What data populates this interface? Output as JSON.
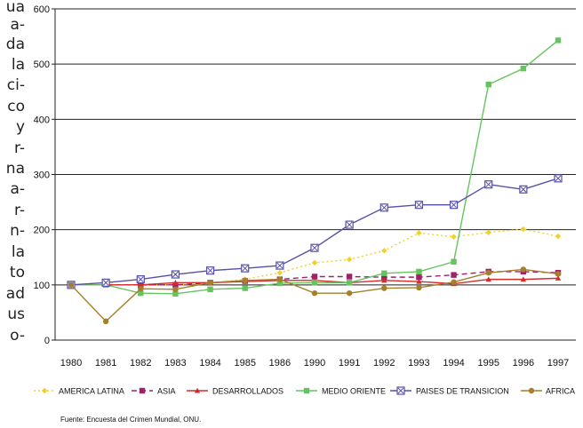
{
  "side_text": [
    "ua",
    "a-",
    "da",
    "la",
    "ci-",
    "co",
    "y",
    "r-",
    "na",
    "a-",
    "r-",
    "n-",
    "la",
    "to",
    "ad",
    "us",
    "o-"
  ],
  "chart_data": {
    "type": "line",
    "title": "",
    "xlabel": "",
    "ylabel": "",
    "categories": [
      "1980",
      "1981",
      "1982",
      "1983",
      "1984",
      "1985",
      "1986",
      "1990",
      "1991",
      "1992",
      "1993",
      "1994",
      "1995",
      "1996",
      "1997"
    ],
    "ylim": [
      0,
      600
    ],
    "yticks": [
      0,
      100,
      200,
      300,
      400,
      500,
      600
    ],
    "grid": "horizontal",
    "legend_position": "bottom",
    "series": [
      {
        "name": "AMERICA LATINA",
        "color": "#f2d02a",
        "dash": "2,3",
        "marker": "diamond",
        "values": [
          100,
          100,
          100,
          100,
          103,
          110,
          122,
          140,
          146,
          162,
          194,
          187,
          195,
          201,
          188
        ]
      },
      {
        "name": "ASIA",
        "color": "#a0206a",
        "dash": "6,4",
        "marker": "square",
        "values": [
          100,
          100,
          100,
          100,
          104,
          107,
          110,
          115,
          115,
          114,
          114,
          118,
          124,
          124,
          122
        ]
      },
      {
        "name": "DESARROLLADOS",
        "color": "#d62b2b",
        "dash": "",
        "marker": "triangle",
        "values": [
          100,
          100,
          100,
          104,
          104,
          106,
          108,
          108,
          104,
          108,
          106,
          102,
          110,
          110,
          112
        ]
      },
      {
        "name": "MEDIO ORIENTE",
        "color": "#66c460",
        "dash": "",
        "marker": "square",
        "values": [
          100,
          100,
          85,
          84,
          92,
          94,
          103,
          104,
          104,
          121,
          124,
          142,
          463,
          492,
          543
        ]
      },
      {
        "name": "PAISES DE TRANSICION",
        "color": "#5550a8",
        "dash": "",
        "marker": "boxed-x",
        "values": [
          100,
          104,
          110,
          119,
          126,
          130,
          135,
          167,
          209,
          240,
          245,
          245,
          282,
          273,
          293
        ]
      },
      {
        "name": "AFRICA",
        "color": "#a57f2c",
        "dash": "",
        "marker": "circle",
        "values": [
          100,
          34,
          93,
          92,
          104,
          108,
          110,
          85,
          85,
          94,
          95,
          105,
          122,
          128,
          120
        ]
      }
    ],
    "source": "Fuente: Encuesta del Crimen Mundial, ONU."
  }
}
